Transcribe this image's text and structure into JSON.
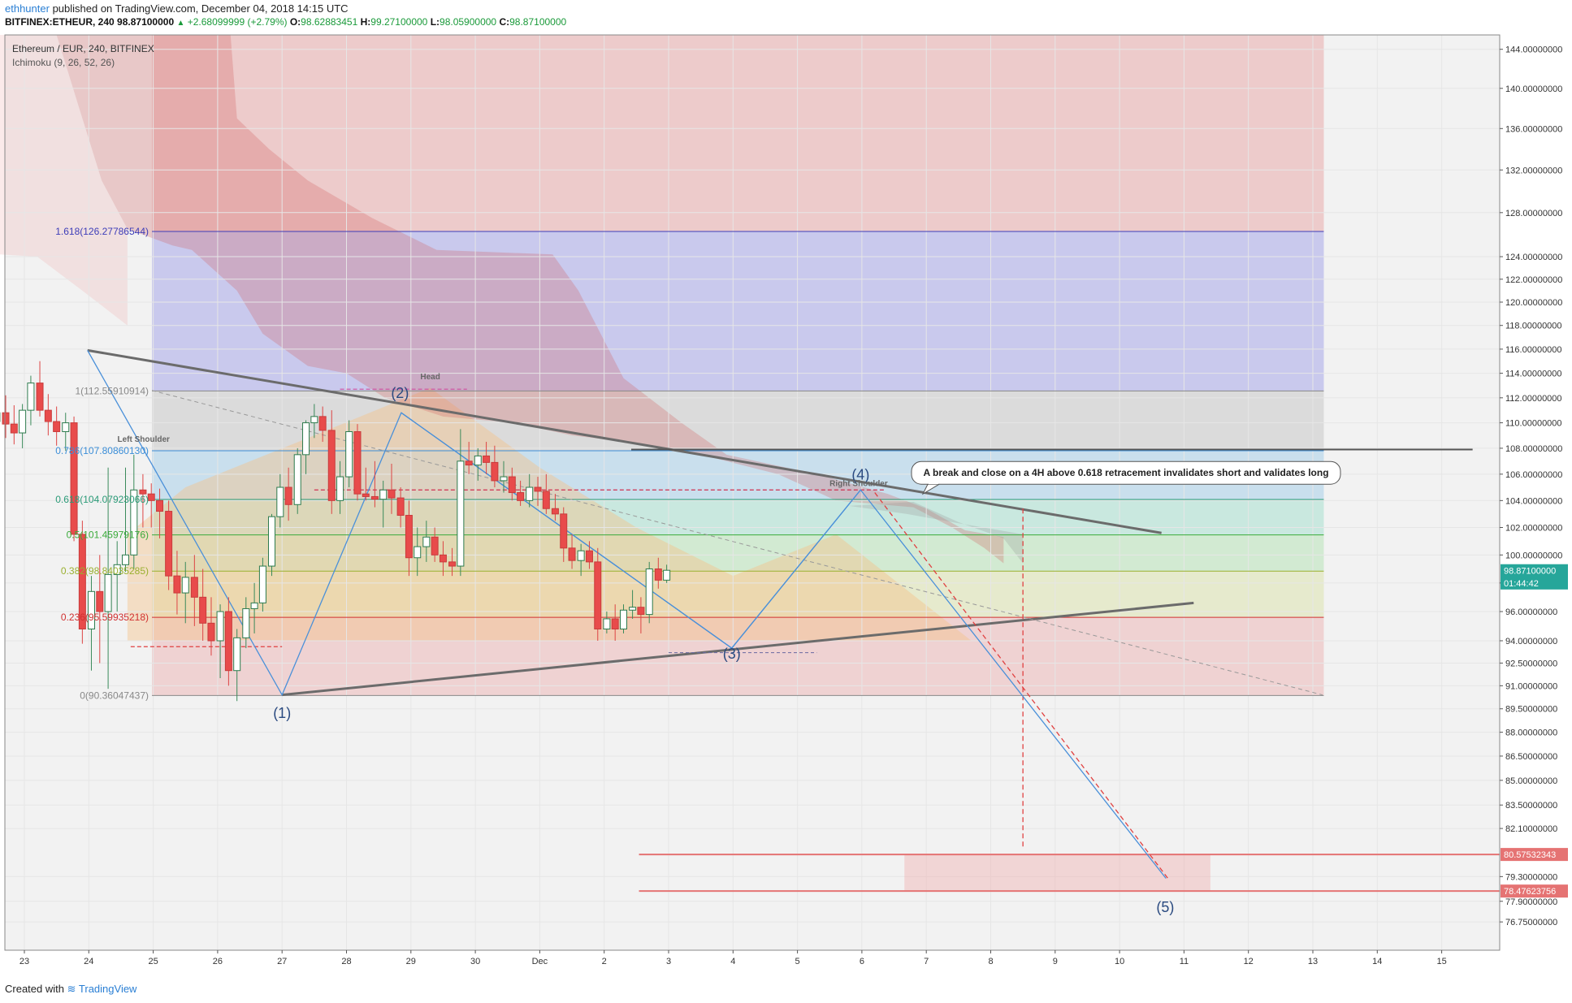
{
  "header": {
    "user": "ethhunter",
    "published": "published on TradingView.com, December 04, 2018 14:15 UTC",
    "symbol": "BITFINEX:ETHEUR, 240",
    "last": "98.87100000",
    "change": "+2.68099999 (+2.79%)",
    "o_label": "O:",
    "o_value": "98.62883451",
    "h_label": "H:",
    "h_value": "99.27100000",
    "l_label": "L:",
    "l_value": "98.05900000",
    "c_label": "C:",
    "c_value": "98.87100000"
  },
  "legend": {
    "title": "Ethereum / EUR, 240, BITFINEX",
    "indicator": "Ichimoku (9, 26, 52, 26)"
  },
  "footer": {
    "created": "Created with",
    "brand": "TradingView"
  },
  "colors": {
    "up": "#ffffff",
    "down": "#e84b4b",
    "fib_1618": "#3d3db8",
    "fib_0786": "#3b8ed8",
    "fib_0618": "#2a9a77",
    "fib_05": "#3aaa3a",
    "fib_0382": "#9ab030",
    "fib_0236": "#d03030",
    "price_tag": "#26a69a",
    "target_tag": "#e57373"
  },
  "chart_data": {
    "type": "candlestick",
    "y_scale": "log",
    "ylim": [
      75.2,
      145.5
    ],
    "x_range_days": [
      -1.25,
      22.2
    ],
    "x_ticks": [
      {
        "d": 0,
        "label": "23"
      },
      {
        "d": 1,
        "label": "24"
      },
      {
        "d": 2,
        "label": "25"
      },
      {
        "d": 3,
        "label": "26"
      },
      {
        "d": 4,
        "label": "27"
      },
      {
        "d": 5,
        "label": "28"
      },
      {
        "d": 6,
        "label": "29"
      },
      {
        "d": 7,
        "label": "30"
      },
      {
        "d": 8,
        "label": "Dec"
      },
      {
        "d": 9,
        "label": "2"
      },
      {
        "d": 10,
        "label": "3"
      },
      {
        "d": 11,
        "label": "4"
      },
      {
        "d": 12,
        "label": "5"
      },
      {
        "d": 13,
        "label": "6"
      },
      {
        "d": 14,
        "label": "7"
      },
      {
        "d": 15,
        "label": "8"
      },
      {
        "d": 16,
        "label": "9"
      },
      {
        "d": 17,
        "label": "10"
      },
      {
        "d": 18,
        "label": "11"
      },
      {
        "d": 19,
        "label": "12"
      },
      {
        "d": 20,
        "label": "13"
      },
      {
        "d": 21,
        "label": "14"
      },
      {
        "d": 22,
        "label": "15"
      }
    ],
    "y_ticks": [
      {
        "v": 144.0,
        "label": "144.00000000"
      },
      {
        "v": 140.0,
        "label": "140.00000000"
      },
      {
        "v": 136.0,
        "label": "136.00000000"
      },
      {
        "v": 132.0,
        "label": "132.00000000"
      },
      {
        "v": 128.0,
        "label": "128.00000000"
      },
      {
        "v": 124.0,
        "label": "124.00000000"
      },
      {
        "v": 122.0,
        "label": "122.00000000"
      },
      {
        "v": 120.0,
        "label": "120.00000000"
      },
      {
        "v": 118.0,
        "label": "118.00000000"
      },
      {
        "v": 116.0,
        "label": "116.00000000"
      },
      {
        "v": 114.0,
        "label": "114.00000000"
      },
      {
        "v": 112.0,
        "label": "112.00000000"
      },
      {
        "v": 110.0,
        "label": "110.00000000"
      },
      {
        "v": 108.0,
        "label": "108.00000000"
      },
      {
        "v": 106.0,
        "label": "106.00000000"
      },
      {
        "v": 104.0,
        "label": "104.00000000"
      },
      {
        "v": 102.0,
        "label": "102.00000000"
      },
      {
        "v": 100.0,
        "label": "100.00000000"
      },
      {
        "v": 98.0,
        "label": "98."
      },
      {
        "v": 96.0,
        "label": "96.00000000"
      },
      {
        "v": 94.0,
        "label": "94.00000000"
      },
      {
        "v": 92.5,
        "label": "92.50000000"
      },
      {
        "v": 91.0,
        "label": "91.00000000"
      },
      {
        "v": 89.5,
        "label": "89.50000000"
      },
      {
        "v": 88.0,
        "label": "88.00000000"
      },
      {
        "v": 86.5,
        "label": "86.50000000"
      },
      {
        "v": 85.0,
        "label": "85.00000000"
      },
      {
        "v": 83.5,
        "label": "83.50000000"
      },
      {
        "v": 82.1,
        "label": "82.10000000"
      },
      {
        "v": 79.3,
        "label": "79.30000000"
      },
      {
        "v": 77.9,
        "label": "77.90000000"
      },
      {
        "v": 76.75,
        "label": "76.75000000"
      }
    ],
    "price_tags": [
      {
        "v": 98.871,
        "label": "98.87100000",
        "kind": "last"
      },
      {
        "v": 98.0,
        "label": "01:44:42",
        "kind": "countdown"
      },
      {
        "v": 80.57532343,
        "label": "80.57532343",
        "kind": "target"
      },
      {
        "v": 78.47623756,
        "label": "78.47623756",
        "kind": "target"
      }
    ],
    "fib_levels": [
      {
        "ratio": "1.618",
        "v": 126.27786544,
        "label": "1.618(126.27786544)",
        "color": "#3d3db8"
      },
      {
        "ratio": "1",
        "v": 112.55910914,
        "label": "1(112.55910914)",
        "color": "#888888"
      },
      {
        "ratio": "0.786",
        "v": 107.8086013,
        "label": "0.786(107.80860130)",
        "color": "#3b8ed8"
      },
      {
        "ratio": "0.618",
        "v": 104.07923066,
        "label": "0.618(104.07923066)",
        "color": "#2a9a77"
      },
      {
        "ratio": "0.5",
        "v": 101.45979176,
        "label": "0.5(101.45979176)",
        "color": "#3aaa3a"
      },
      {
        "ratio": "0.382",
        "v": 98.84035285,
        "label": "0.382(98.84035285)",
        "color": "#9ab030"
      },
      {
        "ratio": "0.236",
        "v": 95.59935218,
        "label": "0.236(95.59935218)",
        "color": "#d03030"
      },
      {
        "ratio": "0",
        "v": 90.36047437,
        "label": "0(90.36047437)",
        "color": "#888888"
      }
    ],
    "wave_labels": [
      {
        "label": "(1)",
        "d": 4.0,
        "v": 88.9
      },
      {
        "label": "(2)",
        "d": 5.83,
        "v": 112.0
      },
      {
        "label": "(3)",
        "d": 10.98,
        "v": 92.8
      },
      {
        "label": "(4)",
        "d": 12.98,
        "v": 105.6
      },
      {
        "label": "(5)",
        "d": 17.71,
        "v": 77.3
      }
    ],
    "pattern_labels": [
      {
        "label": "Left Shoulder",
        "d": 1.85,
        "v": 108.5
      },
      {
        "label": "Head",
        "d": 6.3,
        "v": 113.5
      },
      {
        "label": "Right Shoulder",
        "d": 12.95,
        "v": 105.1
      }
    ],
    "annotation": "A break and close on a 4H above 0.618 retracement invalidates short and validates long",
    "candles": [
      [
        -1.09,
        115.0,
        117.0,
        109.7,
        111.8
      ],
      [
        -0.96,
        111.8,
        113.6,
        109.5,
        110.2
      ],
      [
        -0.83,
        110.2,
        113.0,
        105.0,
        109.3
      ],
      [
        -0.69,
        109.3,
        111.2,
        107.0,
        110.8
      ],
      [
        -0.56,
        110.8,
        114.0,
        109.2,
        110.1
      ],
      [
        -0.43,
        110.1,
        111.0,
        108.5,
        110.8
      ],
      [
        -0.29,
        110.8,
        112.2,
        108.8,
        109.9
      ],
      [
        -0.16,
        109.9,
        111.4,
        108.3,
        109.2
      ],
      [
        -0.03,
        109.2,
        111.5,
        108.0,
        111.0
      ],
      [
        0.1,
        111.0,
        113.8,
        109.8,
        113.2
      ],
      [
        0.24,
        113.2,
        115.0,
        110.5,
        111.0
      ],
      [
        0.37,
        111.0,
        112.3,
        109.0,
        110.1
      ],
      [
        0.5,
        110.1,
        111.3,
        108.2,
        109.3
      ],
      [
        0.64,
        109.3,
        110.8,
        107.8,
        110.0
      ],
      [
        0.77,
        110.0,
        110.5,
        101.0,
        101.5
      ],
      [
        0.9,
        101.5,
        102.5,
        93.8,
        94.8
      ],
      [
        1.04,
        94.8,
        98.5,
        92.0,
        97.4
      ],
      [
        1.17,
        97.4,
        100.0,
        92.5,
        96.0
      ],
      [
        1.3,
        96.0,
        106.5,
        90.8,
        98.6
      ],
      [
        1.44,
        98.6,
        101.0,
        96.0,
        99.3
      ],
      [
        1.57,
        99.3,
        106.5,
        98.8,
        100.0
      ],
      [
        1.7,
        100.0,
        107.5,
        99.0,
        104.8
      ],
      [
        1.84,
        104.8,
        106.0,
        102.0,
        104.5
      ],
      [
        1.97,
        104.5,
        105.3,
        102.0,
        104.0
      ],
      [
        2.1,
        104.0,
        104.9,
        101.2,
        103.2
      ],
      [
        2.24,
        103.2,
        104.0,
        97.5,
        98.5
      ],
      [
        2.37,
        98.5,
        100.3,
        95.8,
        97.3
      ],
      [
        2.5,
        97.3,
        99.5,
        95.2,
        98.4
      ],
      [
        2.64,
        98.4,
        100.0,
        95.0,
        97.0
      ],
      [
        2.77,
        97.0,
        99.0,
        94.0,
        95.2
      ],
      [
        2.9,
        95.2,
        97.0,
        93.0,
        94.0
      ],
      [
        3.04,
        94.0,
        96.5,
        91.5,
        96.0
      ],
      [
        3.17,
        96.0,
        97.0,
        91.0,
        92.0
      ],
      [
        3.3,
        92.0,
        94.8,
        90.0,
        94.2
      ],
      [
        3.44,
        94.2,
        97.0,
        93.5,
        96.2
      ],
      [
        3.57,
        96.2,
        98.0,
        94.5,
        96.6
      ],
      [
        3.7,
        96.6,
        99.8,
        96.0,
        99.2
      ],
      [
        3.84,
        99.2,
        103.0,
        98.5,
        102.8
      ],
      [
        3.97,
        102.8,
        106.0,
        102.0,
        105.0
      ],
      [
        4.1,
        105.0,
        106.5,
        102.5,
        103.7
      ],
      [
        4.24,
        103.7,
        108.0,
        103.0,
        107.5
      ],
      [
        4.37,
        107.5,
        110.2,
        106.0,
        110.0
      ],
      [
        4.5,
        110.0,
        111.5,
        108.8,
        110.5
      ],
      [
        4.63,
        110.5,
        111.3,
        108.5,
        109.4
      ],
      [
        4.77,
        109.4,
        111.0,
        103.0,
        104.0
      ],
      [
        4.9,
        104.0,
        107.0,
        103.0,
        105.8
      ],
      [
        5.04,
        105.8,
        110.2,
        105.0,
        109.3
      ],
      [
        5.17,
        109.3,
        109.9,
        104.0,
        104.5
      ],
      [
        5.3,
        104.5,
        106.5,
        104.0,
        104.3
      ],
      [
        5.44,
        104.3,
        107.0,
        103.5,
        104.1
      ],
      [
        5.57,
        104.1,
        105.5,
        102.0,
        104.8
      ],
      [
        5.7,
        104.8,
        106.8,
        103.0,
        104.2
      ],
      [
        5.84,
        104.2,
        105.0,
        102.0,
        102.9
      ],
      [
        5.97,
        102.9,
        104.0,
        98.5,
        99.8
      ],
      [
        6.1,
        99.8,
        102.0,
        98.5,
        100.6
      ],
      [
        6.24,
        100.6,
        102.5,
        99.5,
        101.3
      ],
      [
        6.37,
        101.3,
        102.0,
        99.5,
        100.0
      ],
      [
        6.5,
        100.0,
        101.0,
        98.5,
        99.5
      ],
      [
        6.64,
        99.5,
        100.5,
        98.5,
        99.2
      ],
      [
        6.77,
        99.2,
        109.5,
        98.5,
        107.0
      ],
      [
        6.9,
        107.0,
        108.5,
        106.0,
        106.7
      ],
      [
        7.04,
        106.7,
        108.0,
        105.5,
        107.4
      ],
      [
        7.17,
        107.4,
        108.5,
        106.0,
        106.9
      ],
      [
        7.3,
        106.9,
        108.2,
        105.0,
        105.5
      ],
      [
        7.44,
        105.5,
        107.0,
        104.6,
        105.8
      ],
      [
        7.57,
        105.8,
        106.5,
        104.0,
        104.6
      ],
      [
        7.7,
        104.6,
        105.5,
        103.6,
        104.0
      ],
      [
        7.84,
        104.0,
        106.0,
        103.5,
        105.0
      ],
      [
        7.97,
        105.0,
        105.8,
        103.6,
        104.7
      ],
      [
        8.1,
        104.7,
        106.0,
        103.0,
        103.4
      ],
      [
        8.24,
        103.4,
        104.5,
        102.5,
        103.0
      ],
      [
        8.37,
        103.0,
        103.5,
        99.5,
        100.5
      ],
      [
        8.5,
        100.5,
        101.5,
        99.0,
        99.6
      ],
      [
        8.64,
        99.6,
        100.8,
        98.5,
        100.3
      ],
      [
        8.77,
        100.3,
        101.0,
        99.0,
        99.5
      ],
      [
        8.9,
        99.5,
        100.5,
        94.0,
        94.8
      ],
      [
        9.04,
        94.8,
        96.0,
        94.5,
        95.5
      ],
      [
        9.17,
        95.5,
        96.5,
        94.0,
        94.8
      ],
      [
        9.3,
        94.8,
        96.5,
        94.5,
        96.1
      ],
      [
        9.44,
        96.1,
        97.5,
        95.5,
        96.3
      ],
      [
        9.57,
        96.3,
        97.0,
        94.5,
        95.8
      ],
      [
        9.7,
        95.8,
        99.5,
        95.2,
        99.0
      ],
      [
        9.84,
        99.0,
        99.8,
        97.6,
        98.2
      ],
      [
        9.97,
        98.2,
        99.3,
        98.0,
        98.9
      ]
    ]
  }
}
